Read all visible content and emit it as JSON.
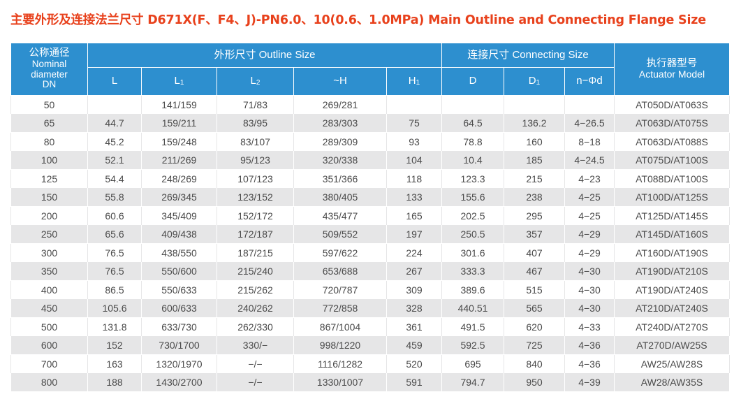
{
  "title": "主要外形及连接法兰尺寸 D671X(F、F4、J)-PN6.0、10(0.6、1.0MPa) Main Outline and Connecting Flange Size",
  "header": {
    "dn_cn": "公称通径",
    "dn_en1": "Nominal",
    "dn_en2": "diameter",
    "dn_en3": "DN",
    "outline": "外形尺寸 Outline Size",
    "connecting": "连接尺寸 Connecting Size",
    "actuator_cn": "执行器型号",
    "actuator_en": "Actuator Model",
    "cols": {
      "L": "L",
      "L1_base": "L",
      "L1_sub": "1",
      "L2_base": "L",
      "L2_sub": "2",
      "H": "~H",
      "H1_base": "H",
      "H1_sub": "1",
      "D": "D",
      "D1_base": "D",
      "D1_sub": "1",
      "nd": "n−Φd"
    }
  },
  "rows": [
    [
      "50",
      "",
      "141/159",
      "71/83",
      "269/281",
      "",
      "",
      "",
      "",
      "AT050D/AT063S"
    ],
    [
      "65",
      "44.7",
      "159/211",
      "83/95",
      "283/303",
      "75",
      "64.5",
      "136.2",
      "4−26.5",
      "AT063D/AT075S"
    ],
    [
      "80",
      "45.2",
      "159/248",
      "83/107",
      "289/309",
      "93",
      "78.8",
      "160",
      "8−18",
      "AT063D/AT088S"
    ],
    [
      "100",
      "52.1",
      "211/269",
      "95/123",
      "320/338",
      "104",
      "10.4",
      "185",
      "4−24.5",
      "AT075D/AT100S"
    ],
    [
      "125",
      "54.4",
      "248/269",
      "107/123",
      "351/366",
      "118",
      "123.3",
      "215",
      "4−23",
      "AT088D/AT100S"
    ],
    [
      "150",
      "55.8",
      "269/345",
      "123/152",
      "380/405",
      "133",
      "155.6",
      "238",
      "4−25",
      "AT100D/AT125S"
    ],
    [
      "200",
      "60.6",
      "345/409",
      "152/172",
      "435/477",
      "165",
      "202.5",
      "295",
      "4−25",
      "AT125D/AT145S"
    ],
    [
      "250",
      "65.6",
      "409/438",
      "172/187",
      "509/552",
      "197",
      "250.5",
      "357",
      "4−29",
      "AT145D/AT160S"
    ],
    [
      "300",
      "76.5",
      "438/550",
      "187/215",
      "597/622",
      "224",
      "301.6",
      "407",
      "4−29",
      "AT160D/AT190S"
    ],
    [
      "350",
      "76.5",
      "550/600",
      "215/240",
      "653/688",
      "267",
      "333.3",
      "467",
      "4−30",
      "AT190D/AT210S"
    ],
    [
      "400",
      "86.5",
      "550/633",
      "215/262",
      "720/787",
      "309",
      "389.6",
      "515",
      "4−30",
      "AT190D/AT240S"
    ],
    [
      "450",
      "105.6",
      "600/633",
      "240/262",
      "772/858",
      "328",
      "440.51",
      "565",
      "4−30",
      "AT210D/AT240S"
    ],
    [
      "500",
      "131.8",
      "633/730",
      "262/330",
      "867/1004",
      "361",
      "491.5",
      "620",
      "4−33",
      "AT240D/AT270S"
    ],
    [
      "600",
      "152",
      "730/1700",
      "330/−",
      "998/1220",
      "459",
      "592.5",
      "725",
      "4−36",
      "AT270D/AW25S"
    ],
    [
      "700",
      "163",
      "1320/1970",
      "−/−",
      "1116/1282",
      "520",
      "695",
      "840",
      "4−36",
      "AW25/AW28S"
    ],
    [
      "800",
      "188",
      "1430/2700",
      "−/−",
      "1330/1007",
      "591",
      "794.7",
      "950",
      "4−39",
      "AW28/AW35S"
    ]
  ],
  "colors": {
    "title": "#e8411c",
    "header_bg": "#2d8fcf",
    "header_text": "#ffffff",
    "stripe": "#e6e6e7",
    "cell_text": "#4a4a4a"
  }
}
